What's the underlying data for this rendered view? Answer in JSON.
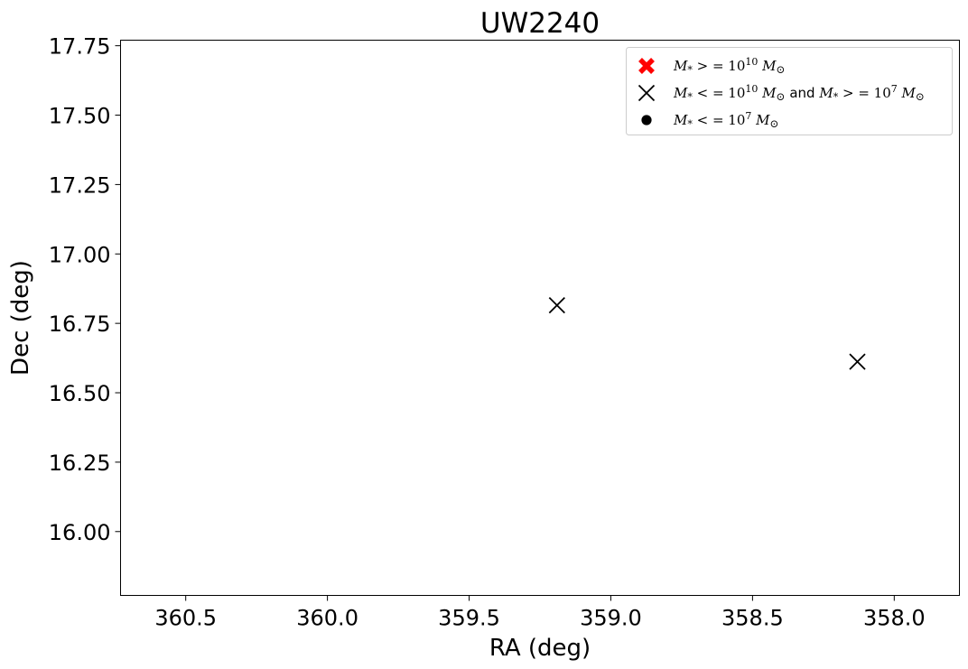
{
  "chart_data": {
    "type": "scatter",
    "title": "UW2240",
    "xlabel": "RA (deg)",
    "ylabel": "Dec (deg)",
    "xlim": [
      360.73,
      357.77
    ],
    "ylim": [
      15.77,
      17.77
    ],
    "x_inverted": true,
    "xticks": [
      360.5,
      360.0,
      359.5,
      359.0,
      358.5,
      358.0
    ],
    "xtick_labels": [
      "360.5",
      "360.0",
      "359.5",
      "359.0",
      "358.5",
      "358.0"
    ],
    "yticks": [
      16.0,
      16.25,
      16.5,
      16.75,
      17.0,
      17.25,
      17.5,
      17.75
    ],
    "ytick_labels": [
      "16.00",
      "16.25",
      "16.50",
      "16.75",
      "17.00",
      "17.25",
      "17.50",
      "17.75"
    ],
    "grid": false,
    "legend_position": "top-right",
    "series": [
      {
        "name": "M* >= 10^10 M☉",
        "label_parts": [
          "M",
          "*",
          " > = 10",
          "10",
          " M",
          "⊙"
        ],
        "marker": "filled-x",
        "color": "#ff0000",
        "points": []
      },
      {
        "name": "M* <= 10^10 M☉ and M* >= 10^7 M☉",
        "label_parts": [
          "M",
          "*",
          " < = 10",
          "10",
          " M",
          "⊙",
          " and ",
          "M",
          "*",
          " > = 10",
          "7",
          " M",
          "⊙"
        ],
        "marker": "x",
        "color": "#000000",
        "points": [
          {
            "x": 359.19,
            "y": 16.815
          },
          {
            "x": 358.13,
            "y": 16.612
          }
        ]
      },
      {
        "name": "M* <= 10^7 M☉",
        "label_parts": [
          "M",
          "*",
          " < = 10",
          "7",
          " M",
          "⊙"
        ],
        "marker": "circle",
        "color": "#000000",
        "points": []
      }
    ]
  }
}
